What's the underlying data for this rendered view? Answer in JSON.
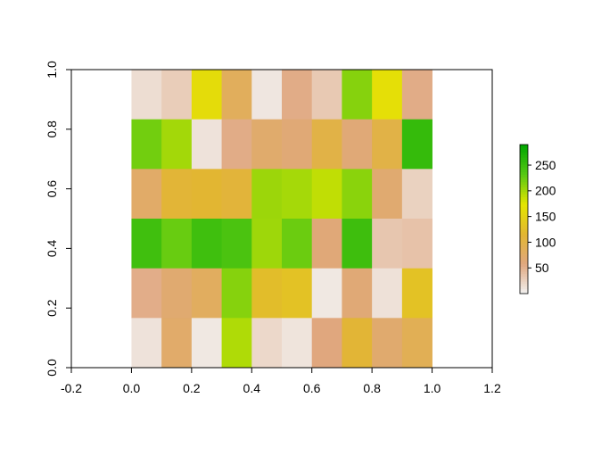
{
  "chart_data": {
    "type": "heatmap",
    "title": "",
    "xlabel": "",
    "ylabel": "",
    "xlim": [
      -0.2,
      1.2
    ],
    "ylim": [
      0,
      1
    ],
    "x_ticks": [
      "-0.2",
      "0.0",
      "0.2",
      "0.4",
      "0.6",
      "0.8",
      "1.0",
      "1.2"
    ],
    "y_ticks": [
      "0.0",
      "0.2",
      "0.4",
      "0.6",
      "0.8",
      "1.0"
    ],
    "grid": false,
    "columns": 10,
    "rows": 6,
    "cells": [
      [
        16,
        29,
        162,
        84,
        9,
        54,
        32,
        213,
        166,
        54
      ],
      [
        221,
        201,
        12,
        54,
        72,
        65,
        100,
        64,
        100,
        255
      ],
      [
        75,
        112,
        116,
        110,
        204,
        200,
        189,
        211,
        69,
        25
      ],
      [
        247,
        225,
        248,
        240,
        203,
        224,
        63,
        249,
        34,
        37
      ],
      [
        53,
        69,
        82,
        213,
        125,
        131,
        8,
        65,
        13,
        131
      ],
      [
        12,
        74,
        8,
        196,
        20,
        11,
        59,
        113,
        71,
        90
      ]
    ],
    "colorbar": {
      "range": [
        0,
        290
      ],
      "ticks": [
        "50",
        "100",
        "150",
        "200",
        "250"
      ],
      "colors": [
        "#f2f2f2",
        "#e0a77f",
        "#e2b632",
        "#e5e600",
        "#57c813",
        "#00a600"
      ]
    }
  }
}
